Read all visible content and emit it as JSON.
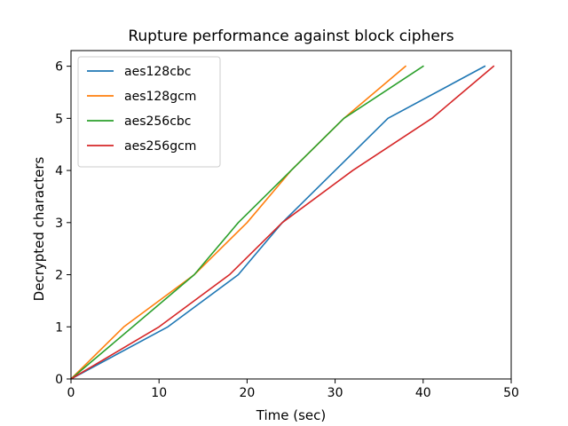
{
  "chart_data": {
    "type": "line",
    "title": "Rupture performance against block ciphers",
    "xlabel": "Time (sec)",
    "ylabel": "Decrypted characters",
    "xlim": [
      0,
      50
    ],
    "ylim": [
      0,
      6.3
    ],
    "xticks": [
      0,
      10,
      20,
      30,
      40,
      50
    ],
    "yticks": [
      0,
      1,
      2,
      3,
      4,
      5,
      6
    ],
    "grid": false,
    "legend_position": "top-left",
    "series": [
      {
        "name": "aes128cbc",
        "color": "#1f77b4",
        "x": [
          0,
          11,
          19,
          24,
          30,
          36,
          47
        ],
        "y": [
          0,
          1,
          2,
          3,
          4,
          5,
          6
        ]
      },
      {
        "name": "aes128gcm",
        "color": "#ff7f0e",
        "x": [
          0,
          6,
          14,
          20,
          25,
          31,
          38
        ],
        "y": [
          0,
          1,
          2,
          3,
          4,
          5,
          6
        ]
      },
      {
        "name": "aes256cbc",
        "color": "#2ca02c",
        "x": [
          0,
          14,
          19,
          25,
          31,
          40
        ],
        "y": [
          0,
          2,
          3,
          4,
          5,
          6
        ]
      },
      {
        "name": "aes256gcm",
        "color": "#d62728",
        "x": [
          0,
          10,
          18,
          24,
          32,
          41,
          48
        ],
        "y": [
          0,
          1,
          2,
          3,
          4,
          5,
          6
        ]
      }
    ]
  }
}
